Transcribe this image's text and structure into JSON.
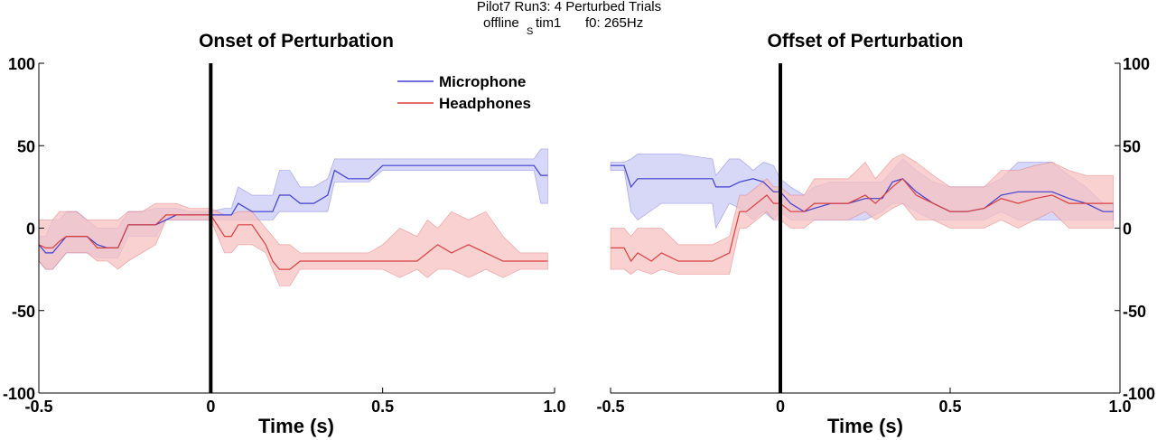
{
  "figure": {
    "title_line1": "Pilot7 Run3: 4 Perturbed Trials",
    "title_line2_prefix": "offline",
    "title_line2_sub": "S",
    "title_line2_mid": "tim1",
    "title_line2_suffix": "f0: 265Hz"
  },
  "chart_data": [
    {
      "type": "line",
      "title": "Onset of Perturbation",
      "xlabel": "Time (s)",
      "ylabel": "",
      "xlim": [
        -0.5,
        1.0
      ],
      "ylim": [
        -100,
        100
      ],
      "xticks": [
        -0.5,
        0,
        0.5,
        1.0
      ],
      "xtick_labels": [
        "-0.5",
        "0",
        "0.5",
        "1.0"
      ],
      "yticks": [
        -100,
        -50,
        0,
        50,
        100
      ],
      "ytick_labels": [
        "-100",
        "-50",
        "0",
        "50",
        "100"
      ],
      "y_axis_side": "left",
      "vertical_marker_x": 0,
      "legend": {
        "position": "top-right",
        "entries": [
          "Microphone",
          "Headphones"
        ]
      },
      "colors": {
        "Microphone": "#3f3fcf",
        "Headphones": "#d94040",
        "Microphone_band": "#c9c9f5",
        "Headphones_band": "#f7c2c2"
      },
      "series": [
        {
          "name": "Microphone",
          "x": [
            -0.5,
            -0.48,
            -0.46,
            -0.44,
            -0.42,
            -0.39,
            -0.36,
            -0.33,
            -0.3,
            -0.27,
            -0.24,
            -0.2,
            -0.16,
            -0.13,
            -0.1,
            -0.06,
            -0.02,
            0,
            0.04,
            0.06,
            0.08,
            0.12,
            0.16,
            0.18,
            0.2,
            0.23,
            0.26,
            0.3,
            0.34,
            0.36,
            0.4,
            0.46,
            0.5,
            0.6,
            0.7,
            0.8,
            0.9,
            0.94,
            0.96,
            0.98
          ],
          "mean": [
            -10,
            -15,
            -15,
            -10,
            -5,
            -5,
            -5,
            -10,
            -12,
            -12,
            2,
            2,
            2,
            5,
            8,
            8,
            8,
            8,
            8,
            8,
            15,
            10,
            10,
            10,
            20,
            20,
            15,
            15,
            20,
            35,
            30,
            30,
            38,
            38,
            38,
            38,
            38,
            38,
            32,
            32
          ],
          "upper": [
            -5,
            -5,
            5,
            5,
            10,
            10,
            5,
            0,
            0,
            0,
            10,
            10,
            12,
            12,
            12,
            10,
            10,
            10,
            12,
            12,
            25,
            20,
            20,
            20,
            35,
            35,
            25,
            25,
            30,
            42,
            42,
            42,
            42,
            42,
            42,
            42,
            42,
            42,
            48,
            48
          ],
          "lower": [
            -20,
            -25,
            -25,
            -20,
            -15,
            -15,
            -15,
            -18,
            -18,
            -18,
            -5,
            -5,
            -5,
            5,
            5,
            5,
            5,
            5,
            5,
            5,
            5,
            5,
            5,
            5,
            10,
            10,
            10,
            10,
            10,
            28,
            28,
            28,
            35,
            35,
            35,
            35,
            35,
            35,
            15,
            15
          ]
        },
        {
          "name": "Headphones",
          "x": [
            -0.5,
            -0.48,
            -0.46,
            -0.44,
            -0.42,
            -0.39,
            -0.36,
            -0.33,
            -0.3,
            -0.27,
            -0.24,
            -0.2,
            -0.16,
            -0.13,
            -0.1,
            -0.06,
            -0.02,
            0,
            0.04,
            0.06,
            0.08,
            0.12,
            0.16,
            0.18,
            0.2,
            0.23,
            0.26,
            0.3,
            0.34,
            0.4,
            0.46,
            0.5,
            0.55,
            0.6,
            0.63,
            0.66,
            0.7,
            0.75,
            0.8,
            0.85,
            0.9,
            0.94,
            0.98
          ],
          "mean": [
            -10,
            -12,
            -12,
            -8,
            -5,
            -5,
            -5,
            -12,
            -12,
            -12,
            2,
            2,
            2,
            8,
            8,
            8,
            8,
            8,
            -5,
            -5,
            2,
            2,
            -10,
            -20,
            -25,
            -25,
            -20,
            -20,
            -20,
            -20,
            -20,
            -20,
            -20,
            -20,
            -15,
            -10,
            -15,
            -10,
            -15,
            -20,
            -20,
            -20,
            -20
          ],
          "upper": [
            5,
            5,
            5,
            10,
            10,
            10,
            5,
            5,
            5,
            5,
            10,
            10,
            15,
            15,
            15,
            12,
            12,
            12,
            8,
            8,
            10,
            10,
            0,
            -5,
            -10,
            -10,
            -15,
            -15,
            -15,
            -15,
            -15,
            -10,
            0,
            -5,
            5,
            0,
            10,
            5,
            10,
            -5,
            -15,
            -15,
            -15
          ],
          "lower": [
            -20,
            -25,
            -25,
            -20,
            -15,
            -15,
            -15,
            -20,
            -20,
            -25,
            -20,
            -15,
            -10,
            5,
            5,
            5,
            5,
            5,
            -15,
            -15,
            -10,
            -10,
            -15,
            -25,
            -35,
            -35,
            -25,
            -25,
            -25,
            -25,
            -25,
            -25,
            -30,
            -25,
            -30,
            -25,
            -25,
            -30,
            -25,
            -30,
            -25,
            -25,
            -25
          ]
        }
      ]
    },
    {
      "type": "line",
      "title": "Offset of Perturbation",
      "xlabel": "Time (s)",
      "ylabel": "",
      "xlim": [
        -0.5,
        1.0
      ],
      "ylim": [
        -100,
        100
      ],
      "xticks": [
        -0.5,
        0,
        0.5,
        1.0
      ],
      "xtick_labels": [
        "-0.5",
        "0",
        "0.5",
        "1.0"
      ],
      "yticks": [
        -100,
        -50,
        0,
        50,
        100
      ],
      "ytick_labels": [
        "-100",
        "-50",
        "0",
        "50",
        "100"
      ],
      "y_axis_side": "right",
      "vertical_marker_x": 0,
      "colors": {
        "Microphone": "#3f3fcf",
        "Headphones": "#d94040",
        "Microphone_band": "#c9c9f5",
        "Headphones_band": "#f7c2c2"
      },
      "series": [
        {
          "name": "Microphone",
          "x": [
            -0.5,
            -0.46,
            -0.44,
            -0.42,
            -0.35,
            -0.3,
            -0.2,
            -0.19,
            -0.15,
            -0.12,
            -0.08,
            -0.05,
            -0.02,
            0,
            0.03,
            0.07,
            0.1,
            0.15,
            0.2,
            0.25,
            0.3,
            0.33,
            0.36,
            0.4,
            0.45,
            0.5,
            0.55,
            0.6,
            0.65,
            0.7,
            0.75,
            0.8,
            0.85,
            0.9,
            0.95,
            0.98
          ],
          "mean": [
            38,
            38,
            25,
            30,
            30,
            30,
            30,
            25,
            25,
            28,
            30,
            28,
            22,
            22,
            15,
            10,
            12,
            15,
            15,
            18,
            18,
            28,
            30,
            22,
            15,
            10,
            10,
            12,
            20,
            22,
            22,
            22,
            18,
            15,
            10,
            10
          ],
          "upper": [
            40,
            40,
            42,
            45,
            45,
            45,
            42,
            32,
            42,
            42,
            35,
            40,
            38,
            30,
            25,
            20,
            25,
            28,
            28,
            28,
            28,
            35,
            42,
            35,
            28,
            25,
            25,
            25,
            30,
            40,
            40,
            40,
            32,
            25,
            15,
            15
          ],
          "lower": [
            35,
            35,
            10,
            5,
            15,
            15,
            15,
            0,
            15,
            12,
            5,
            10,
            5,
            10,
            5,
            5,
            5,
            5,
            5,
            5,
            10,
            15,
            15,
            10,
            5,
            5,
            5,
            5,
            10,
            5,
            5,
            5,
            5,
            5,
            5,
            5
          ]
        },
        {
          "name": "Headphones",
          "x": [
            -0.5,
            -0.46,
            -0.44,
            -0.42,
            -0.38,
            -0.35,
            -0.3,
            -0.2,
            -0.15,
            -0.12,
            -0.1,
            -0.07,
            -0.04,
            -0.02,
            0,
            0.03,
            0.07,
            0.1,
            0.15,
            0.2,
            0.25,
            0.28,
            0.33,
            0.36,
            0.4,
            0.45,
            0.5,
            0.55,
            0.6,
            0.65,
            0.7,
            0.75,
            0.8,
            0.85,
            0.9,
            0.95,
            0.98
          ],
          "mean": [
            -12,
            -12,
            -20,
            -15,
            -20,
            -15,
            -20,
            -20,
            -15,
            10,
            10,
            15,
            20,
            15,
            15,
            10,
            10,
            15,
            15,
            15,
            20,
            15,
            25,
            30,
            20,
            15,
            10,
            10,
            12,
            18,
            15,
            18,
            20,
            15,
            15,
            15,
            15
          ],
          "upper": [
            0,
            0,
            -5,
            0,
            0,
            0,
            -10,
            -10,
            -5,
            20,
            20,
            25,
            30,
            25,
            25,
            20,
            20,
            30,
            30,
            30,
            40,
            30,
            42,
            45,
            40,
            32,
            25,
            25,
            25,
            35,
            35,
            38,
            40,
            35,
            32,
            32,
            32
          ],
          "lower": [
            -25,
            -25,
            -28,
            -25,
            -28,
            -25,
            -28,
            -28,
            -28,
            0,
            0,
            5,
            10,
            5,
            5,
            0,
            0,
            5,
            5,
            5,
            10,
            5,
            12,
            15,
            5,
            5,
            0,
            0,
            0,
            5,
            0,
            5,
            10,
            0,
            0,
            0,
            0
          ]
        }
      ]
    }
  ]
}
